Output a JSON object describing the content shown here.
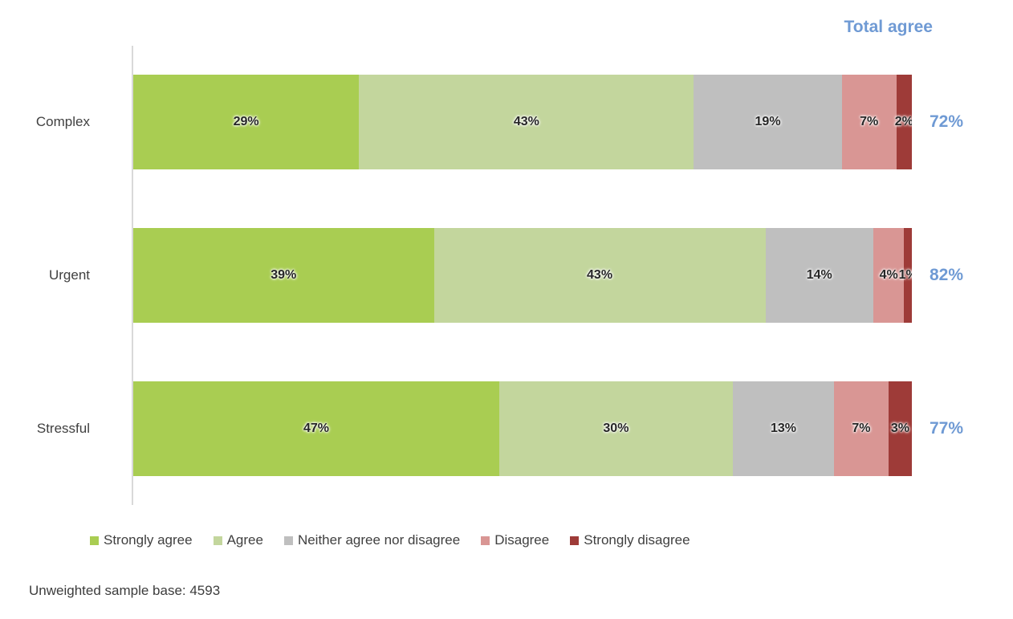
{
  "colors": {
    "strongly_agree": "#a9cd52",
    "agree": "#c3d69d",
    "neither": "#bfbfbf",
    "disagree": "#d99694",
    "strongly_disagree": "#9e3b38",
    "total_agree_blue": "#6f9ad4",
    "axis_line": "#d9d9d9",
    "label_text": "#404040"
  },
  "chart_data": {
    "type": "bar",
    "orientation": "horizontal-stacked",
    "title": "",
    "categories": [
      "Complex",
      "Urgent",
      "Stressful"
    ],
    "series": [
      {
        "name": "Strongly agree",
        "color": "#a9cd52",
        "values": [
          29,
          39,
          47
        ]
      },
      {
        "name": "Agree",
        "color": "#c3d69d",
        "values": [
          43,
          43,
          30
        ]
      },
      {
        "name": "Neither agree nor disagree",
        "color": "#bfbfbf",
        "values": [
          19,
          14,
          13
        ]
      },
      {
        "name": "Disagree",
        "color": "#d99694",
        "values": [
          7,
          4,
          7
        ]
      },
      {
        "name": "Strongly disagree",
        "color": "#9e3b38",
        "values": [
          2,
          1,
          3
        ]
      }
    ],
    "totals": {
      "label": "Total agree",
      "values": [
        "72%",
        "82%",
        "77%"
      ]
    },
    "xlim": [
      0,
      100
    ],
    "grid": false,
    "legend_position": "bottom",
    "data_labels": "percent",
    "note": "Unweighted sample base: 4593"
  },
  "header": {
    "total_agree_label": "Total agree"
  },
  "rows": [
    {
      "label": "Complex",
      "total": "72%",
      "segments": [
        {
          "value": 29,
          "label": "29%"
        },
        {
          "value": 43,
          "label": "43%"
        },
        {
          "value": 19,
          "label": "19%"
        },
        {
          "value": 7,
          "label": "7%"
        },
        {
          "value": 2,
          "label": "2%"
        }
      ]
    },
    {
      "label": "Urgent",
      "total": "82%",
      "segments": [
        {
          "value": 39,
          "label": "39%"
        },
        {
          "value": 43,
          "label": "43%"
        },
        {
          "value": 14,
          "label": "14%"
        },
        {
          "value": 4,
          "label": "4%"
        },
        {
          "value": 1,
          "label": "1%"
        }
      ]
    },
    {
      "label": "Stressful",
      "total": "77%",
      "segments": [
        {
          "value": 47,
          "label": "47%"
        },
        {
          "value": 30,
          "label": "30%"
        },
        {
          "value": 13,
          "label": "13%"
        },
        {
          "value": 7,
          "label": "7%"
        },
        {
          "value": 3,
          "label": "3%"
        }
      ]
    }
  ],
  "legend": {
    "items": [
      {
        "label": "Strongly agree"
      },
      {
        "label": "Agree"
      },
      {
        "label": "Neither agree nor disagree"
      },
      {
        "label": "Disagree"
      },
      {
        "label": "Strongly disagree"
      }
    ]
  },
  "footer": {
    "sample_base": "Unweighted sample base: 4593"
  }
}
